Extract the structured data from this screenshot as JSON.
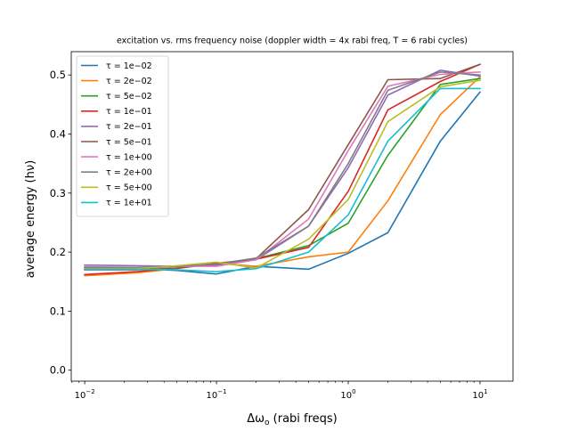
{
  "chart_data": {
    "type": "line",
    "title": "excitation vs. rms frequency noise (doppler width = 4x rabi freq, T = 6 rabi cycles)",
    "xlabel": "Δω",
    "xlabel_sub": "o",
    "xlabel_suffix": " (rabi freqs)",
    "ylabel": "average energy (hν)",
    "xscale": "log",
    "xlim": [
      0.0079,
      17.8
    ],
    "ylim": [
      -0.0185,
      0.5395
    ],
    "xticks": [
      0.01,
      0.1,
      1,
      10
    ],
    "xtick_labels": [
      {
        "base": "10",
        "exp": "−2"
      },
      {
        "base": "10",
        "exp": "−1"
      },
      {
        "base": "10",
        "exp": "0"
      },
      {
        "base": "10",
        "exp": "1"
      }
    ],
    "yticks": [
      0.0,
      0.1,
      0.2,
      0.3,
      0.4,
      0.5
    ],
    "ytick_labels": [
      "0.0",
      "0.1",
      "0.2",
      "0.3",
      "0.4",
      "0.5"
    ],
    "grid": false,
    "legend_position": "upper-left",
    "x": [
      0.01,
      0.025,
      0.05,
      0.1,
      0.2,
      0.5,
      1,
      2,
      5,
      10
    ],
    "series": [
      {
        "name": "τ = 1e−02",
        "color": "#1f77b4",
        "values": [
          0.173,
          0.172,
          0.169,
          0.163,
          0.176,
          0.171,
          0.198,
          0.233,
          0.388,
          0.471
        ]
      },
      {
        "name": "τ = 2e−02",
        "color": "#ff7f0e",
        "values": [
          0.16,
          0.165,
          0.172,
          0.181,
          0.176,
          0.192,
          0.2,
          0.287,
          0.433,
          0.497
        ]
      },
      {
        "name": "τ = 5e−02",
        "color": "#2ca02c",
        "values": [
          0.172,
          0.172,
          0.176,
          0.178,
          0.189,
          0.211,
          0.249,
          0.364,
          0.484,
          0.494
        ]
      },
      {
        "name": "τ = 1e−01",
        "color": "#d62728",
        "values": [
          0.162,
          0.167,
          0.173,
          0.181,
          0.188,
          0.208,
          0.303,
          0.441,
          0.489,
          0.518
        ]
      },
      {
        "name": "τ = 2e−01",
        "color": "#9467bd",
        "values": [
          0.178,
          0.177,
          0.176,
          0.178,
          0.187,
          0.244,
          0.343,
          0.466,
          0.508,
          0.498
        ]
      },
      {
        "name": "τ = 5e−01",
        "color": "#8c564b",
        "values": [
          0.17,
          0.17,
          0.173,
          0.18,
          0.189,
          0.272,
          0.382,
          0.492,
          0.494,
          0.518
        ]
      },
      {
        "name": "τ = 1e+00",
        "color": "#e377c2",
        "values": [
          0.175,
          0.174,
          0.176,
          0.176,
          0.187,
          0.256,
          0.372,
          0.481,
          0.501,
          0.505
        ]
      },
      {
        "name": "τ = 2e+00",
        "color": "#7f7f7f",
        "values": [
          0.174,
          0.174,
          0.176,
          0.18,
          0.19,
          0.244,
          0.35,
          0.474,
          0.505,
          0.5
        ]
      },
      {
        "name": "τ = 5e+00",
        "color": "#bcbd22",
        "values": [
          0.172,
          0.172,
          0.177,
          0.183,
          0.173,
          0.222,
          0.289,
          0.421,
          0.48,
          0.491
        ]
      },
      {
        "name": "τ = 1e+01",
        "color": "#17becf",
        "values": [
          0.171,
          0.171,
          0.17,
          0.167,
          0.172,
          0.2,
          0.263,
          0.388,
          0.477,
          0.477
        ]
      }
    ]
  }
}
